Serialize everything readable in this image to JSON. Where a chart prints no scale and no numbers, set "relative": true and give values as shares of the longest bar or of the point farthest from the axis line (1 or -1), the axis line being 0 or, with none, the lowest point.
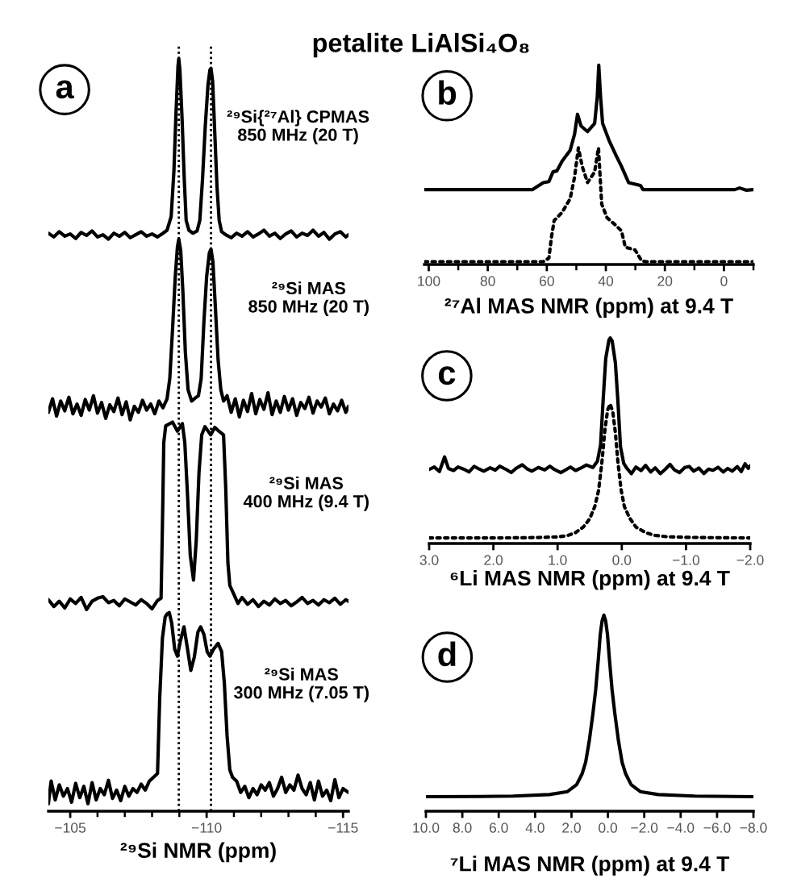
{
  "chart_data": [
    {
      "type": "line",
      "title": "petalite LiAlSi₄O₈",
      "xlabel": "²⁹Si NMR (ppm)",
      "relative": true,
      "annotations": [
        "a"
      ],
      "xlim": [
        -104.2,
        -115.2
      ],
      "xticks": [
        {
          "value": -105,
          "label": "−105"
        },
        {
          "value": -106,
          "label": null
        },
        {
          "value": -107,
          "label": null
        },
        {
          "value": -108,
          "label": null
        },
        {
          "value": -109,
          "label": null
        },
        {
          "value": -110,
          "label": "−110"
        },
        {
          "value": -111,
          "label": null
        },
        {
          "value": -112,
          "label": null
        },
        {
          "value": -113,
          "label": null
        },
        {
          "value": -114,
          "label": null
        },
        {
          "value": -115,
          "label": "−115"
        }
      ],
      "ref_lines": [
        {
          "axis": "x",
          "value": -108.98,
          "color": "#000000",
          "line_style": "dotted"
        },
        {
          "axis": "x",
          "value": -110.16,
          "color": "#000000",
          "line_style": "dotted"
        }
      ],
      "series": [
        {
          "name": "²⁹Si{²⁷Al} CPMAS\n850 MHz (20 T)",
          "color": "#000000",
          "x": [
            -104.2,
            -104.4,
            -104.6,
            -104.8,
            -105.0,
            -105.2,
            -105.4,
            -105.6,
            -105.8,
            -106.0,
            -106.2,
            -106.4,
            -106.6,
            -106.8,
            -107.0,
            -107.2,
            -107.4,
            -107.6,
            -107.8,
            -108.0,
            -108.2,
            -108.4,
            -108.55,
            -108.7,
            -108.8,
            -108.88,
            -108.95,
            -108.98,
            -109.02,
            -109.1,
            -109.18,
            -109.25,
            -109.35,
            -109.5,
            -109.65,
            -109.75,
            -109.85,
            -109.95,
            -110.05,
            -110.12,
            -110.16,
            -110.22,
            -110.3,
            -110.38,
            -110.46,
            -110.55,
            -110.7,
            -110.9,
            -111.1,
            -111.3,
            -111.5,
            -111.7,
            -111.9,
            -112.1,
            -112.3,
            -112.5,
            -112.7,
            -112.9,
            -113.1,
            -113.3,
            -113.5,
            -113.7,
            -113.9,
            -114.1,
            -114.3,
            -114.5,
            -114.7,
            -114.9,
            -115.1,
            -115.2
          ],
          "values": [
            0.768,
            0.763,
            0.77,
            0.764,
            0.767,
            0.761,
            0.769,
            0.765,
            0.771,
            0.763,
            0.766,
            0.76,
            0.768,
            0.764,
            0.769,
            0.762,
            0.766,
            0.77,
            0.764,
            0.767,
            0.763,
            0.768,
            0.772,
            0.79,
            0.85,
            0.93,
            0.99,
            1.0,
            0.985,
            0.92,
            0.84,
            0.785,
            0.772,
            0.768,
            0.771,
            0.785,
            0.84,
            0.91,
            0.965,
            0.985,
            0.987,
            0.97,
            0.9,
            0.83,
            0.785,
            0.77,
            0.766,
            0.762,
            0.768,
            0.764,
            0.77,
            0.763,
            0.767,
            0.772,
            0.764,
            0.768,
            0.761,
            0.767,
            0.771,
            0.763,
            0.768,
            0.765,
            0.772,
            0.764,
            0.769,
            0.76,
            0.767,
            0.77,
            0.763,
            0.766
          ]
        },
        {
          "name": "²⁹Si MAS\n850 MHz (20 T)",
          "color": "#000000",
          "x": [
            -104.2,
            -104.35,
            -104.5,
            -104.65,
            -104.8,
            -104.95,
            -105.1,
            -105.25,
            -105.4,
            -105.55,
            -105.7,
            -105.85,
            -106.0,
            -106.15,
            -106.3,
            -106.45,
            -106.6,
            -106.75,
            -106.9,
            -107.05,
            -107.2,
            -107.35,
            -107.5,
            -107.65,
            -107.8,
            -107.95,
            -108.1,
            -108.25,
            -108.4,
            -108.55,
            -108.65,
            -108.75,
            -108.85,
            -108.93,
            -108.98,
            -109.05,
            -109.13,
            -109.22,
            -109.32,
            -109.45,
            -109.58,
            -109.7,
            -109.8,
            -109.9,
            -110.0,
            -110.1,
            -110.16,
            -110.23,
            -110.32,
            -110.42,
            -110.52,
            -110.62,
            -110.75,
            -110.9,
            -111.05,
            -111.2,
            -111.35,
            -111.5,
            -111.65,
            -111.8,
            -111.95,
            -112.1,
            -112.25,
            -112.4,
            -112.55,
            -112.7,
            -112.85,
            -113.0,
            -113.15,
            -113.3,
            -113.45,
            -113.6,
            -113.75,
            -113.9,
            -114.05,
            -114.2,
            -114.35,
            -114.5,
            -114.65,
            -114.8,
            -114.95,
            -115.1,
            -115.2
          ],
          "values": [
            0.53,
            0.548,
            0.525,
            0.545,
            0.532,
            0.55,
            0.528,
            0.541,
            0.526,
            0.547,
            0.533,
            0.552,
            0.529,
            0.543,
            0.522,
            0.54,
            0.531,
            0.549,
            0.527,
            0.544,
            0.52,
            0.538,
            0.53,
            0.546,
            0.533,
            0.541,
            0.528,
            0.545,
            0.536,
            0.548,
            0.575,
            0.64,
            0.71,
            0.75,
            0.76,
            0.745,
            0.69,
            0.61,
            0.56,
            0.545,
            0.549,
            0.552,
            0.575,
            0.65,
            0.71,
            0.742,
            0.747,
            0.73,
            0.67,
            0.6,
            0.56,
            0.545,
            0.552,
            0.53,
            0.548,
            0.524,
            0.546,
            0.531,
            0.555,
            0.528,
            0.547,
            0.534,
            0.556,
            0.527,
            0.545,
            0.53,
            0.551,
            0.533,
            0.548,
            0.526,
            0.543,
            0.535,
            0.55,
            0.529,
            0.545,
            0.537,
            0.549,
            0.528,
            0.541,
            0.532,
            0.546,
            0.53,
            0.538
          ]
        },
        {
          "name": "²⁹Si MAS\n400 MHz (9.4 T)",
          "color": "#000000",
          "x": [
            -104.2,
            -104.4,
            -104.6,
            -104.8,
            -105.0,
            -105.2,
            -105.4,
            -105.6,
            -105.8,
            -106.0,
            -106.2,
            -106.4,
            -106.6,
            -106.8,
            -107.0,
            -107.2,
            -107.4,
            -107.6,
            -107.8,
            -108.0,
            -108.2,
            -108.33,
            -108.38,
            -108.43,
            -108.5,
            -108.75,
            -108.93,
            -109.11,
            -109.2,
            -109.3,
            -109.4,
            -109.52,
            -109.62,
            -109.72,
            -109.82,
            -109.94,
            -110.15,
            -110.3,
            -110.45,
            -110.62,
            -110.7,
            -110.78,
            -110.85,
            -111.0,
            -111.15,
            -111.3,
            -111.5,
            -111.7,
            -111.9,
            -112.1,
            -112.3,
            -112.5,
            -112.7,
            -112.9,
            -113.1,
            -113.3,
            -113.5,
            -113.7,
            -113.9,
            -114.1,
            -114.3,
            -114.5,
            -114.7,
            -114.9,
            -115.1,
            -115.2
          ],
          "values": [
            0.281,
            0.272,
            0.279,
            0.27,
            0.282,
            0.276,
            0.284,
            0.268,
            0.279,
            0.283,
            0.285,
            0.277,
            0.28,
            0.273,
            0.282,
            0.278,
            0.274,
            0.281,
            0.276,
            0.269,
            0.28,
            0.283,
            0.38,
            0.49,
            0.512,
            0.517,
            0.505,
            0.515,
            0.49,
            0.42,
            0.34,
            0.307,
            0.36,
            0.45,
            0.5,
            0.511,
            0.5,
            0.51,
            0.505,
            0.5,
            0.43,
            0.33,
            0.3,
            0.288,
            0.276,
            0.284,
            0.275,
            0.281,
            0.272,
            0.279,
            0.274,
            0.282,
            0.276,
            0.28,
            0.273,
            0.278,
            0.284,
            0.276,
            0.28,
            0.274,
            0.281,
            0.277,
            0.283,
            0.275,
            0.281,
            0.279
          ]
        },
        {
          "name": "²⁹Si MAS\n300 MHz (7.05 T)",
          "color": "#000000",
          "x": [
            -104.2,
            -104.3,
            -104.45,
            -104.6,
            -104.75,
            -104.9,
            -105.05,
            -105.2,
            -105.35,
            -105.5,
            -105.65,
            -105.8,
            -105.95,
            -106.1,
            -106.25,
            -106.4,
            -106.55,
            -106.7,
            -106.85,
            -107.0,
            -107.15,
            -107.3,
            -107.45,
            -107.6,
            -107.75,
            -107.9,
            -108.05,
            -108.2,
            -108.28,
            -108.38,
            -108.48,
            -108.55,
            -108.63,
            -108.72,
            -108.83,
            -108.93,
            -109.03,
            -109.17,
            -109.28,
            -109.42,
            -109.55,
            -109.68,
            -109.78,
            -109.9,
            -110.02,
            -110.12,
            -110.25,
            -110.42,
            -110.55,
            -110.65,
            -110.75,
            -110.85,
            -110.95,
            -111.1,
            -111.25,
            -111.4,
            -111.55,
            -111.7,
            -111.85,
            -112.0,
            -112.15,
            -112.3,
            -112.45,
            -112.6,
            -112.75,
            -112.9,
            -113.05,
            -113.2,
            -113.35,
            -113.5,
            -113.65,
            -113.8,
            -113.95,
            -114.1,
            -114.25,
            -114.4,
            -114.55,
            -114.7,
            -114.85,
            -115.0,
            -115.2
          ],
          "values": [
            0.01,
            0.04,
            0.015,
            0.035,
            0.02,
            0.03,
            0.012,
            0.037,
            0.018,
            0.033,
            0.01,
            0.038,
            0.015,
            0.03,
            0.022,
            0.041,
            0.017,
            0.028,
            0.014,
            0.033,
            0.02,
            0.03,
            0.025,
            0.036,
            0.028,
            0.04,
            0.045,
            0.05,
            0.15,
            0.23,
            0.258,
            0.262,
            0.264,
            0.25,
            0.215,
            0.206,
            0.225,
            0.245,
            0.22,
            0.187,
            0.205,
            0.238,
            0.245,
            0.235,
            0.212,
            0.206,
            0.215,
            0.223,
            0.212,
            0.17,
            0.1,
            0.055,
            0.045,
            0.04,
            0.025,
            0.033,
            0.018,
            0.03,
            0.022,
            0.035,
            0.028,
            0.038,
            0.02,
            0.03,
            0.045,
            0.025,
            0.035,
            0.028,
            0.048,
            0.03,
            0.022,
            0.038,
            0.015,
            0.04,
            0.02,
            0.028,
            0.014,
            0.042,
            0.018,
            0.03,
            0.025
          ]
        }
      ]
    },
    {
      "type": "line",
      "xlabel": "²⁷Al MAS NMR (ppm) at 9.4 T",
      "relative": true,
      "annotations": [
        "b"
      ],
      "xlim": [
        101.5,
        -10.0
      ],
      "xticks": [
        100,
        {
          "value": 90,
          "label": null
        },
        80,
        {
          "value": 70,
          "label": null
        },
        60,
        {
          "value": 50,
          "label": null
        },
        40,
        {
          "value": 30,
          "label": null
        },
        20,
        {
          "value": 10,
          "label": null
        },
        0,
        {
          "value": -10,
          "label": null
        }
      ],
      "series": [
        {
          "color": "#000000",
          "line_style": "solid",
          "x": [
            101.5,
            81.3,
            64.8,
            61.2,
            59.3,
            57.9,
            56.6,
            54.8,
            52.1,
            50.6,
            49.6,
            48.4,
            46.2,
            43.8,
            42.9,
            42.4,
            41.8,
            41.1,
            38.9,
            36.5,
            34.7,
            32.3,
            28.3,
            27.4,
            10.0,
            -3.7,
            -5.3,
            -7.5,
            -10.0
          ],
          "values": [
            0.376,
            0.376,
            0.376,
            0.411,
            0.416,
            0.465,
            0.47,
            0.519,
            0.573,
            0.654,
            0.754,
            0.695,
            0.667,
            0.708,
            0.843,
            1.0,
            0.843,
            0.708,
            0.622,
            0.546,
            0.492,
            0.411,
            0.397,
            0.376,
            0.376,
            0.376,
            0.384,
            0.373,
            0.376
          ]
        },
        {
          "color": "#000000",
          "line_style": "dotted",
          "x": [
            101.5,
            61.2,
            59.3,
            58.4,
            57.5,
            54.8,
            52.1,
            50.6,
            49.3,
            48.0,
            46.2,
            43.8,
            42.5,
            41.4,
            39.6,
            36.5,
            34.7,
            33.4,
            30.1,
            27.9,
            26.5,
            -10.0
          ],
          "values": [
            0.014,
            0.014,
            0.032,
            0.14,
            0.221,
            0.262,
            0.33,
            0.438,
            0.586,
            0.492,
            0.411,
            0.465,
            0.586,
            0.303,
            0.235,
            0.195,
            0.168,
            0.087,
            0.073,
            0.019,
            0.014,
            0.014
          ]
        }
      ]
    },
    {
      "type": "line",
      "xlabel": "⁶Li MAS NMR (ppm) at 9.4 T",
      "relative": true,
      "annotations": [
        "c"
      ],
      "xlim": [
        3.0,
        -2.0
      ],
      "xticks": [
        {
          "value": 3.0,
          "label": "3.0"
        },
        {
          "value": 2.0,
          "label": "2.0"
        },
        {
          "value": 1.0,
          "label": "1.0"
        },
        {
          "value": 0.0,
          "label": "0.0"
        },
        {
          "value": -1.0,
          "label": "−1.0"
        },
        {
          "value": -2.0,
          "label": "−2.0"
        }
      ],
      "series": [
        {
          "color": "#000000",
          "line_style": "solid",
          "x": [
            3.0,
            2.92,
            2.84,
            2.76,
            2.7,
            2.62,
            2.55,
            2.45,
            2.38,
            2.3,
            2.22,
            2.15,
            2.05,
            1.97,
            1.9,
            1.8,
            1.72,
            1.65,
            1.55,
            1.47,
            1.4,
            1.3,
            1.2,
            1.12,
            1.05,
            0.95,
            0.88,
            0.8,
            0.72,
            0.65,
            0.55,
            0.45,
            0.38,
            0.33,
            0.29,
            0.25,
            0.2,
            0.18,
            0.15,
            0.1,
            0.06,
            0.02,
            -0.03,
            -0.08,
            -0.15,
            -0.22,
            -0.3,
            -0.37,
            -0.45,
            -0.52,
            -0.6,
            -0.68,
            -0.75,
            -0.82,
            -0.9,
            -0.98,
            -1.05,
            -1.12,
            -1.2,
            -1.28,
            -1.35,
            -1.42,
            -1.5,
            -1.58,
            -1.65,
            -1.72,
            -1.8,
            -1.86,
            -1.92,
            -1.97,
            -2.0
          ],
          "values": [
            0.36,
            0.372,
            0.35,
            0.421,
            0.365,
            0.355,
            0.372,
            0.36,
            0.348,
            0.375,
            0.362,
            0.352,
            0.368,
            0.357,
            0.376,
            0.36,
            0.345,
            0.365,
            0.383,
            0.362,
            0.352,
            0.37,
            0.358,
            0.376,
            0.36,
            0.345,
            0.357,
            0.372,
            0.355,
            0.365,
            0.382,
            0.37,
            0.4,
            0.48,
            0.7,
            0.9,
            0.99,
            1.0,
            0.985,
            0.88,
            0.69,
            0.47,
            0.39,
            0.365,
            0.34,
            0.372,
            0.355,
            0.38,
            0.348,
            0.368,
            0.34,
            0.362,
            0.385,
            0.358,
            0.345,
            0.37,
            0.375,
            0.352,
            0.367,
            0.34,
            0.362,
            0.356,
            0.371,
            0.348,
            0.365,
            0.352,
            0.374,
            0.35,
            0.388,
            0.366,
            0.378
          ]
        },
        {
          "color": "#000000",
          "line_style": "dotted",
          "x": [
            3.0,
            2.5,
            2.0,
            1.5,
            1.2,
            1.0,
            0.85,
            0.72,
            0.6,
            0.5,
            0.42,
            0.36,
            0.31,
            0.26,
            0.22,
            0.18,
            0.14,
            0.1,
            0.06,
            0.01,
            -0.04,
            -0.12,
            -0.22,
            -0.37,
            -0.5,
            -0.7,
            -1.0,
            -1.5,
            -2.0
          ],
          "values": [
            0.027,
            0.027,
            0.027,
            0.028,
            0.03,
            0.032,
            0.038,
            0.053,
            0.08,
            0.12,
            0.18,
            0.26,
            0.395,
            0.56,
            0.65,
            0.679,
            0.64,
            0.54,
            0.395,
            0.26,
            0.18,
            0.125,
            0.08,
            0.053,
            0.04,
            0.033,
            0.03,
            0.028,
            0.027
          ]
        }
      ]
    },
    {
      "type": "line",
      "xlabel": "⁷Li MAS NMR (ppm) at 9.4 T",
      "relative": true,
      "annotations": [
        "d"
      ],
      "xlim": [
        10.0,
        -8.0
      ],
      "xticks": [
        {
          "value": 10.0,
          "label": "10.0"
        },
        {
          "value": 8.0,
          "label": "8.0"
        },
        {
          "value": 6.0,
          "label": "6.0"
        },
        {
          "value": 4.0,
          "label": "4.0"
        },
        {
          "value": 2.0,
          "label": "2.0"
        },
        {
          "value": 0.0,
          "label": "0.0"
        },
        {
          "value": -2.0,
          "label": "−2.0"
        },
        {
          "value": -4.0,
          "label": "−4.0"
        },
        {
          "value": -6.0,
          "label": "−6.0"
        },
        {
          "value": -8.0,
          "label": "−8.0"
        }
      ],
      "series": [
        {
          "color": "#000000",
          "line_style": "solid",
          "x": [
            10.0,
            7.0,
            5.22,
            3.22,
            2.22,
            1.72,
            1.42,
            1.22,
            1.02,
            0.82,
            0.67,
            0.52,
            0.42,
            0.32,
            0.22,
            0.12,
            0.02,
            -0.08,
            -0.23,
            -0.38,
            -0.58,
            -0.78,
            -0.98,
            -1.28,
            -1.78,
            -2.78,
            -4.78,
            -8.0
          ],
          "values": [
            0.074,
            0.075,
            0.077,
            0.085,
            0.1,
            0.135,
            0.19,
            0.25,
            0.36,
            0.5,
            0.62,
            0.78,
            0.9,
            0.97,
            1.0,
            0.97,
            0.9,
            0.78,
            0.62,
            0.5,
            0.36,
            0.25,
            0.19,
            0.135,
            0.1,
            0.085,
            0.077,
            0.074
          ]
        }
      ]
    }
  ]
}
